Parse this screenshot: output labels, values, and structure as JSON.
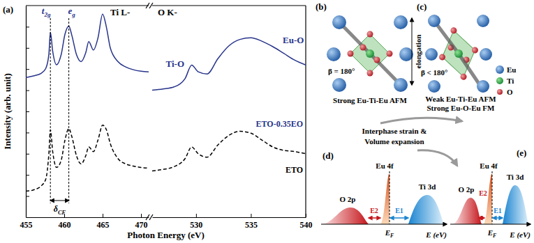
{
  "chart_data": {
    "type": "line",
    "label": "(a)",
    "x_label": "Photon Energy (eV)",
    "y_label": "Intensity (arb. unit)",
    "x_segments": [
      {
        "xlim": [
          455,
          471
        ],
        "xticks": [
          455,
          460,
          465,
          470
        ]
      },
      {
        "xlim": [
          526,
          540
        ],
        "xticks": [
          530,
          535,
          540
        ]
      }
    ],
    "ylim": [
      0,
      10
    ],
    "yticks": [
      1,
      2,
      3,
      4,
      5,
      6,
      7,
      8,
      9
    ],
    "tick_labels": "x",
    "series": [
      {
        "name": "ETO-0.35EO",
        "color": "#27348b",
        "line_style": "solid",
        "x": [
          455,
          456,
          457,
          457.6,
          458.0,
          458.2,
          458.5,
          459.0,
          459.6,
          460.1,
          460.6,
          461.0,
          461.6,
          462.2,
          462.8,
          463.2,
          463.8,
          464.4,
          465.0,
          465.5,
          466.0,
          467.0,
          468.0,
          469.0,
          470.0,
          471.0,
          526,
          527,
          528,
          529,
          529.6,
          530.2,
          531,
          532,
          533,
          534,
          535,
          536,
          537,
          538,
          539,
          540
        ],
        "values": [
          6.6,
          6.68,
          6.8,
          7.03,
          7.7,
          8.74,
          7.84,
          7.2,
          7.68,
          8.65,
          9.03,
          8.58,
          7.68,
          7.35,
          7.77,
          8.3,
          7.9,
          8.48,
          9.6,
          8.97,
          8.0,
          7.35,
          7.1,
          6.97,
          6.9,
          6.87,
          6.0,
          6.06,
          6.16,
          6.55,
          7.19,
          6.87,
          6.77,
          7.5,
          8.1,
          8.4,
          8.48,
          8.32,
          8.06,
          7.74,
          7.42,
          7.19
        ]
      },
      {
        "name": "ETO",
        "color": "#000000",
        "line_style": "dashed",
        "x": [
          455,
          456,
          457,
          457.6,
          458.0,
          458.2,
          458.5,
          459.0,
          459.6,
          460.1,
          460.6,
          461.0,
          461.6,
          462.2,
          462.8,
          463.2,
          463.8,
          464.4,
          465.0,
          465.5,
          466.0,
          467.0,
          468.0,
          469.0,
          470.0,
          471.0,
          526,
          527,
          528,
          529,
          529.6,
          530.2,
          531,
          532,
          533,
          534,
          535,
          536,
          537,
          538,
          539,
          540
        ],
        "values": [
          1.23,
          1.29,
          1.48,
          1.8,
          3.0,
          4.13,
          3.1,
          2.35,
          2.68,
          3.65,
          4.19,
          3.8,
          2.9,
          2.52,
          2.9,
          3.32,
          3.1,
          3.65,
          4.35,
          4.13,
          3.48,
          2.77,
          2.52,
          2.42,
          2.35,
          2.32,
          2.19,
          2.26,
          2.39,
          2.77,
          3.32,
          3.0,
          2.84,
          3.42,
          3.87,
          4.06,
          3.97,
          3.65,
          3.32,
          3.16,
          3.1,
          3.0
        ]
      }
    ],
    "annotations": [
      {
        "text": "Ti L-",
        "color": "#000000"
      },
      {
        "text": "O K-",
        "color": "#000000"
      },
      {
        "text": "Eu-O",
        "color": "#27348b"
      },
      {
        "text": "Ti-O",
        "color": "#27348b"
      }
    ],
    "peaks": [
      {
        "text": "t",
        "sub": "2g",
        "x": 458.2
      },
      {
        "text": "e",
        "sub": "g",
        "x": 460.6
      }
    ],
    "splitting": {
      "text": "δ",
      "sub": "CF"
    }
  },
  "diagrams": {
    "b": {
      "label": "(b)",
      "angle": "β = 180°",
      "caption": [
        "Strong Eu-Ti-Eu AFM"
      ]
    },
    "c": {
      "label": "(c)",
      "angle": "β < 180°",
      "caption": [
        "Weak Eu-Ti-Eu AFM",
        "Strong Eu-O-Eu FM"
      ],
      "strain": "elongation"
    },
    "atoms": [
      "Eu",
      "Ti",
      "O"
    ],
    "transition": [
      "Interphase strain &",
      "Volume expansion"
    ],
    "d": {
      "label": "(d)"
    },
    "e": {
      "label": "(e)"
    },
    "bands": [
      "O 2p",
      "Eu 4f",
      "Ti 3d"
    ],
    "gaps": [
      "E2",
      "E1"
    ],
    "fermi": {
      "text": "E",
      "sub": "F"
    },
    "energy_axis": "E (eV)"
  }
}
